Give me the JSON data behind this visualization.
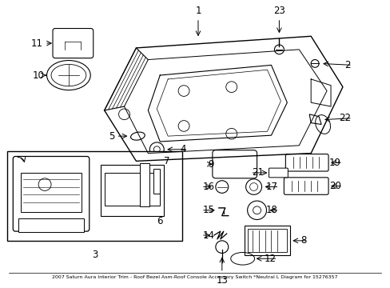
{
  "background_color": "#ffffff",
  "line_color": "#000000",
  "text_color": "#000000",
  "fig_width": 4.89,
  "fig_height": 3.6,
  "dpi": 100,
  "font_size": 8.5,
  "caption": "2007 Saturn Aura Interior Trim - Roof Bezel Asm-Roof Console Accessory Switch *Neutral L Diagram for 15276357"
}
